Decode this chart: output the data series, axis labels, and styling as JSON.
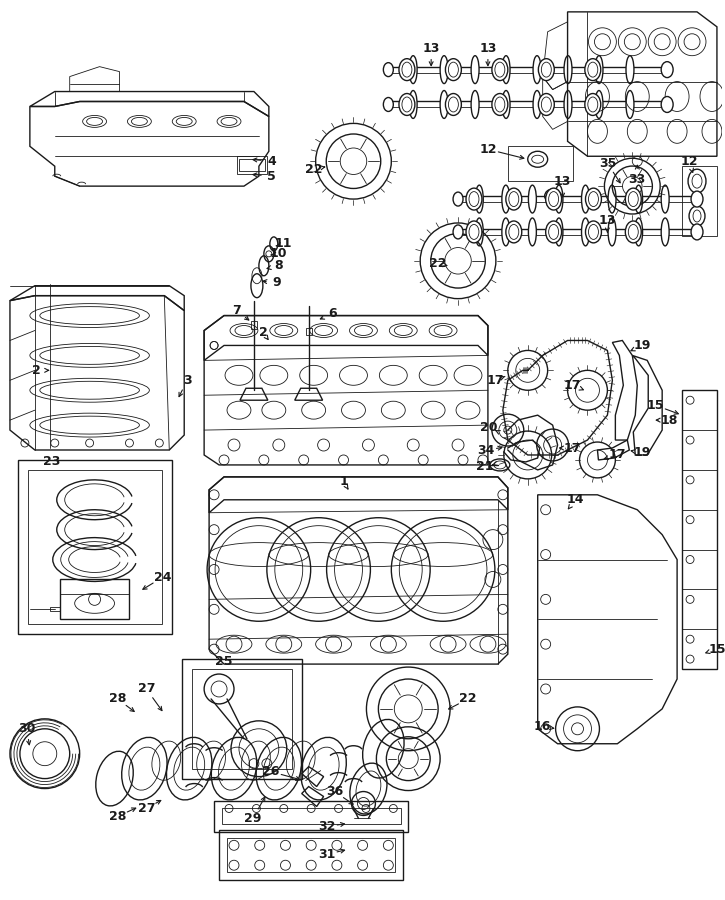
{
  "bg_color": "#ffffff",
  "line_color": "#1a1a1a",
  "fig_width": 7.25,
  "fig_height": 9.0,
  "dpi": 100
}
